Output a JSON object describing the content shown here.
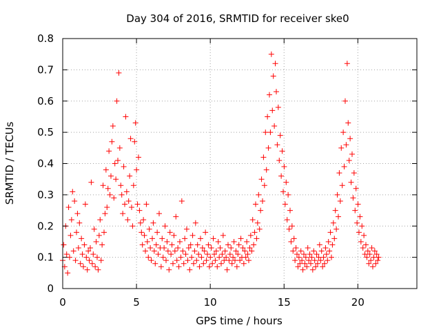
{
  "chart_data": {
    "type": "scatter",
    "title": "Day 304 of 2016, SRMTID for receiver ske0",
    "xlabel": "GPS time / hours",
    "ylabel": "SRMTID / TECUs",
    "xlim": [
      0,
      24
    ],
    "ylim": [
      0,
      0.8
    ],
    "xticks": [
      0,
      5,
      10,
      15,
      20
    ],
    "xtick_labels": [
      "0",
      "5",
      "10",
      "15",
      "20"
    ],
    "yticks": [
      0,
      0.1,
      0.2,
      0.3,
      0.4,
      0.5,
      0.6,
      0.7,
      0.8
    ],
    "ytick_labels": [
      "0",
      "0.1",
      "0.2",
      "0.3",
      "0.4",
      "0.5",
      "0.6",
      "0.7",
      "0.8"
    ],
    "grid": true,
    "marker": "+",
    "series": [
      {
        "name": "SRMTID",
        "color": "#ff0000",
        "x_start": 0.0,
        "x_step": 0.0667,
        "values": [
          0.09,
          0.14,
          0.07,
          0.2,
          0.11,
          0.05,
          0.26,
          0.1,
          0.17,
          0.22,
          0.31,
          0.12,
          0.28,
          0.09,
          0.18,
          0.24,
          0.13,
          0.21,
          0.08,
          0.16,
          0.11,
          0.07,
          0.14,
          0.27,
          0.1,
          0.06,
          0.12,
          0.09,
          0.13,
          0.34,
          0.08,
          0.11,
          0.19,
          0.07,
          0.15,
          0.1,
          0.06,
          0.17,
          0.22,
          0.09,
          0.14,
          0.33,
          0.18,
          0.24,
          0.38,
          0.26,
          0.32,
          0.44,
          0.3,
          0.36,
          0.47,
          0.52,
          0.29,
          0.4,
          0.35,
          0.6,
          0.41,
          0.69,
          0.45,
          0.33,
          0.3,
          0.24,
          0.39,
          0.27,
          0.55,
          0.31,
          0.22,
          0.28,
          0.36,
          0.48,
          0.26,
          0.2,
          0.33,
          0.47,
          0.53,
          0.38,
          0.27,
          0.42,
          0.25,
          0.21,
          0.18,
          0.14,
          0.22,
          0.17,
          0.12,
          0.27,
          0.15,
          0.1,
          0.19,
          0.13,
          0.09,
          0.16,
          0.21,
          0.12,
          0.08,
          0.14,
          0.18,
          0.11,
          0.24,
          0.13,
          0.07,
          0.16,
          0.1,
          0.13,
          0.2,
          0.09,
          0.15,
          0.12,
          0.06,
          0.18,
          0.11,
          0.14,
          0.08,
          0.17,
          0.12,
          0.23,
          0.09,
          0.13,
          0.07,
          0.15,
          0.1,
          0.28,
          0.12,
          0.08,
          0.16,
          0.11,
          0.19,
          0.09,
          0.13,
          0.06,
          0.14,
          0.1,
          0.17,
          0.08,
          0.12,
          0.21,
          0.09,
          0.14,
          0.11,
          0.07,
          0.16,
          0.1,
          0.13,
          0.08,
          0.12,
          0.18,
          0.09,
          0.11,
          0.14,
          0.07,
          0.1,
          0.13,
          0.08,
          0.16,
          0.11,
          0.09,
          0.12,
          0.07,
          0.15,
          0.1,
          0.13,
          0.08,
          0.11,
          0.17,
          0.09,
          0.12,
          0.1,
          0.06,
          0.14,
          0.09,
          0.11,
          0.13,
          0.08,
          0.1,
          0.15,
          0.09,
          0.12,
          0.07,
          0.11,
          0.14,
          0.09,
          0.16,
          0.1,
          0.13,
          0.08,
          0.12,
          0.1,
          0.15,
          0.11,
          0.09,
          0.13,
          0.17,
          0.12,
          0.22,
          0.14,
          0.18,
          0.27,
          0.16,
          0.21,
          0.3,
          0.19,
          0.25,
          0.35,
          0.28,
          0.42,
          0.33,
          0.5,
          0.38,
          0.55,
          0.45,
          0.62,
          0.5,
          0.75,
          0.57,
          0.68,
          0.52,
          0.72,
          0.63,
          0.46,
          0.58,
          0.41,
          0.49,
          0.36,
          0.44,
          0.31,
          0.39,
          0.27,
          0.34,
          0.22,
          0.3,
          0.19,
          0.25,
          0.15,
          0.2,
          0.12,
          0.16,
          0.09,
          0.13,
          0.11,
          0.07,
          0.1,
          0.08,
          0.12,
          0.09,
          0.06,
          0.11,
          0.08,
          0.1,
          0.07,
          0.13,
          0.09,
          0.11,
          0.08,
          0.1,
          0.06,
          0.12,
          0.09,
          0.07,
          0.11,
          0.08,
          0.1,
          0.14,
          0.09,
          0.12,
          0.07,
          0.1,
          0.08,
          0.13,
          0.11,
          0.09,
          0.15,
          0.12,
          0.18,
          0.1,
          0.14,
          0.21,
          0.16,
          0.25,
          0.19,
          0.3,
          0.23,
          0.37,
          0.28,
          0.45,
          0.33,
          0.5,
          0.39,
          0.6,
          0.46,
          0.72,
          0.53,
          0.41,
          0.48,
          0.34,
          0.43,
          0.29,
          0.37,
          0.25,
          0.32,
          0.21,
          0.27,
          0.18,
          0.23,
          0.15,
          0.2,
          0.13,
          0.17,
          0.11,
          0.14,
          0.1,
          0.12,
          0.08,
          0.11,
          0.09,
          0.13,
          0.07,
          0.1,
          0.12,
          0.08,
          0.11,
          0.09,
          0.1
        ]
      }
    ]
  }
}
